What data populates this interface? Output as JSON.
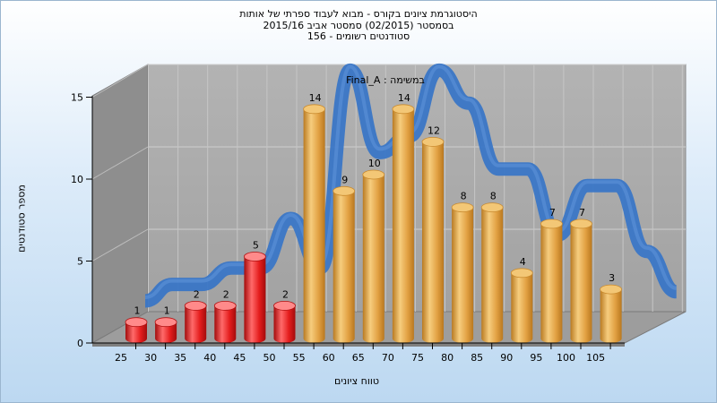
{
  "titles": {
    "line1": "היסטוגרמת ציונים בקורס - מבוא לעבוד ספרתי של אותות",
    "line2": "בסמסטר  (02/2015)  סמסטר אביב 2015/16",
    "line3": "סטודנטים רשומים - 156"
  },
  "chart_data": {
    "type": "bar",
    "title": "היסטוגרמת ציונים בקורס - מבוא לעבוד ספרתי של אותות",
    "xlabel": "טווח ציונים",
    "ylabel": "מספר סטודנטים",
    "ylim": [
      0,
      15
    ],
    "yticks": [
      0,
      5,
      10,
      15
    ],
    "categories": [
      "25",
      "30",
      "35",
      "40",
      "45",
      "50",
      "55",
      "60",
      "65",
      "70",
      "75",
      "80",
      "85",
      "90",
      "95",
      "100",
      "105"
    ],
    "values": [
      1,
      1,
      2,
      2,
      5,
      2,
      14,
      9,
      10,
      14,
      12,
      8,
      8,
      4,
      7,
      7,
      3
    ],
    "bar_colors": {
      "fail": "#e41d1d",
      "pass": "#e7a43f",
      "fail_categories": [
        "25",
        "30",
        "35",
        "40",
        "45",
        "50"
      ]
    },
    "series": [
      {
        "name": "Final_A : במשימה",
        "type": "line",
        "color": "#3a76c6"
      }
    ],
    "grid": true,
    "legend": "top-center"
  }
}
